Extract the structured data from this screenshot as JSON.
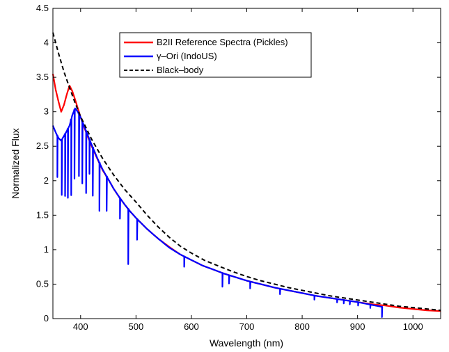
{
  "chart_data": {
    "type": "line",
    "xlabel": "Wavelength (nm)",
    "ylabel": "Normalized Flux",
    "xlim": [
      350,
      1050
    ],
    "ylim": [
      0,
      4.5
    ],
    "xticks": [
      400,
      500,
      600,
      700,
      800,
      900,
      1000
    ],
    "yticks": [
      0,
      0.5,
      1,
      1.5,
      2,
      2.5,
      3,
      3.5,
      4,
      4.5
    ],
    "grid": false,
    "legend_position": "top-left inside",
    "series": [
      {
        "name": "B2II Reference Spectra (Pickles)",
        "color": "#ff0000",
        "style": "solid",
        "x": [
          350,
          355,
          360,
          365,
          370,
          375,
          380,
          385,
          390,
          395,
          400,
          410,
          420,
          430,
          440,
          450,
          460,
          470,
          480,
          490,
          500,
          520,
          540,
          560,
          580,
          600,
          620,
          640,
          660,
          680,
          700,
          725,
          750,
          775,
          800,
          825,
          850,
          875,
          900,
          925,
          950,
          975,
          1000,
          1025,
          1050
        ],
        "y": [
          3.55,
          3.32,
          3.15,
          3.0,
          3.1,
          3.25,
          3.38,
          3.3,
          3.18,
          3.05,
          2.92,
          2.7,
          2.5,
          2.32,
          2.15,
          2.02,
          1.88,
          1.76,
          1.65,
          1.55,
          1.46,
          1.3,
          1.16,
          1.04,
          0.93,
          0.85,
          0.77,
          0.71,
          0.65,
          0.6,
          0.55,
          0.5,
          0.45,
          0.41,
          0.37,
          0.33,
          0.3,
          0.27,
          0.24,
          0.21,
          0.19,
          0.16,
          0.14,
          0.12,
          0.11
        ]
      },
      {
        "name": "γ–Ori (IndoUS)",
        "color": "#0000ff",
        "style": "solid",
        "x": [
          350,
          355,
          360,
          365,
          370,
          375,
          380,
          385,
          390,
          395,
          400,
          410,
          420,
          430,
          440,
          450,
          460,
          470,
          480,
          490,
          500,
          520,
          540,
          560,
          580,
          600,
          620,
          640,
          660,
          680,
          700,
          725,
          750,
          775,
          800,
          825,
          850,
          875,
          900,
          925,
          945
        ],
        "y": [
          2.8,
          2.7,
          2.62,
          2.58,
          2.65,
          2.72,
          2.8,
          2.95,
          3.05,
          3.0,
          2.92,
          2.72,
          2.52,
          2.33,
          2.16,
          2.02,
          1.88,
          1.76,
          1.65,
          1.55,
          1.46,
          1.3,
          1.16,
          1.03,
          0.93,
          0.85,
          0.77,
          0.71,
          0.65,
          0.6,
          0.55,
          0.5,
          0.45,
          0.41,
          0.37,
          0.33,
          0.3,
          0.27,
          0.24,
          0.2,
          0.17
        ]
      },
      {
        "name": "Black–body",
        "color": "#000000",
        "style": "dashed",
        "x": [
          350,
          360,
          370,
          380,
          390,
          400,
          420,
          440,
          460,
          480,
          500,
          520,
          540,
          560,
          580,
          600,
          625,
          650,
          675,
          700,
          725,
          750,
          775,
          800,
          825,
          850,
          875,
          900,
          925,
          950,
          975,
          1000,
          1025,
          1050
        ],
        "y": [
          4.15,
          3.85,
          3.58,
          3.35,
          3.13,
          2.93,
          2.6,
          2.32,
          2.08,
          1.87,
          1.69,
          1.5,
          1.33,
          1.18,
          1.05,
          0.95,
          0.84,
          0.76,
          0.68,
          0.61,
          0.55,
          0.5,
          0.45,
          0.41,
          0.37,
          0.33,
          0.3,
          0.27,
          0.24,
          0.21,
          0.18,
          0.16,
          0.14,
          0.12
        ]
      }
    ],
    "absorption_lines": {
      "series": "γ–Ori (IndoUS)",
      "x": [
        358,
        366,
        372,
        377,
        383,
        389,
        397,
        403,
        410,
        416,
        422,
        434,
        447,
        471,
        486,
        502,
        587,
        656,
        668,
        706,
        760,
        822,
        863,
        875,
        886,
        901,
        923,
        944
      ],
      "depth": [
        0.6,
        0.8,
        0.9,
        1.0,
        1.1,
        1.0,
        0.9,
        0.9,
        0.9,
        0.5,
        0.7,
        0.7,
        0.5,
        0.3,
        0.8,
        0.3,
        0.15,
        0.2,
        0.12,
        0.1,
        0.08,
        0.06,
        0.05,
        0.05,
        0.05,
        0.05,
        0.05,
        0.15
      ]
    }
  }
}
